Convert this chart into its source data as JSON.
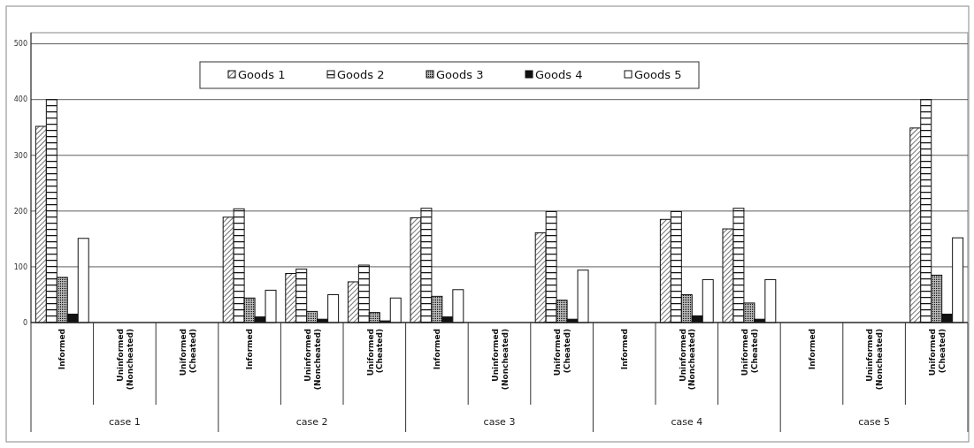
{
  "chart_data": {
    "type": "bar",
    "categories": [
      "Informed",
      "Uninformed (Noncheated)",
      "Uniformed (Cheated)",
      "Informed",
      "Uninformed (Noncheated)",
      "Uniformed (Cheated)",
      "Informed",
      "Uninformed (Noncheated)",
      "Uniformed (Cheated)",
      "Informed",
      "Uninformed (Noncheated)",
      "Uniformed (Cheated)",
      "Informed",
      "Uninformed (Noncheated)",
      "Uniformed (Cheated)"
    ],
    "series": [
      {
        "name": "Goods 1",
        "color": "#111111",
        "values": [
          352,
          null,
          null,
          189,
          88,
          73,
          188,
          null,
          161,
          null,
          185,
          168,
          null,
          null,
          349
        ]
      },
      {
        "name": "Goods 2",
        "color": "#111111",
        "values": [
          400,
          null,
          null,
          204,
          96,
          103,
          205,
          null,
          199,
          null,
          199,
          205,
          null,
          null,
          400
        ]
      },
      {
        "name": "Goods 3",
        "color": "#111111",
        "values": [
          81,
          null,
          null,
          44,
          20,
          18,
          47,
          null,
          40,
          null,
          50,
          35,
          null,
          null,
          85
        ]
      },
      {
        "name": "Goods 4",
        "color": "#111111",
        "values": [
          15,
          null,
          null,
          10,
          6,
          3,
          10,
          null,
          6,
          null,
          12,
          6,
          null,
          null,
          15
        ]
      },
      {
        "name": "Goods 5",
        "color": "#ffffff",
        "values": [
          151,
          null,
          null,
          58,
          50,
          44,
          59,
          null,
          94,
          null,
          77,
          77,
          null,
          null,
          152
        ]
      }
    ],
    "annotations": [
      "case 1",
      "case 2",
      "case 3",
      "case 4",
      "case 5"
    ],
    "ylim": [
      0,
      520
    ],
    "yticks": [
      0,
      100,
      200,
      300,
      400,
      500
    ],
    "grid": "y",
    "legend": "top"
  }
}
